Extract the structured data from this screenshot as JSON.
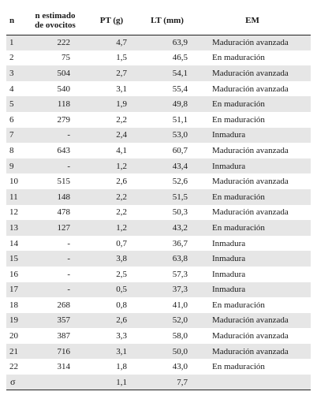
{
  "table": {
    "headers": {
      "n": "n",
      "ovocitos_line1": "n estimado",
      "ovocitos_line2": "de ovocitos",
      "pt": "PT (g)",
      "lt": "LT (mm)",
      "em": "EM"
    },
    "rows": [
      {
        "n": "1",
        "ovocitos": "222",
        "pt": "4,7",
        "lt": "63,9",
        "em": "Maduración avanzada"
      },
      {
        "n": "2",
        "ovocitos": "75",
        "pt": "1,5",
        "lt": "46,5",
        "em": "En maduración"
      },
      {
        "n": "3",
        "ovocitos": "504",
        "pt": "2,7",
        "lt": "54,1",
        "em": "Maduración avanzada"
      },
      {
        "n": "4",
        "ovocitos": "540",
        "pt": "3,1",
        "lt": "55,4",
        "em": "Maduración avanzada"
      },
      {
        "n": "5",
        "ovocitos": "118",
        "pt": "1,9",
        "lt": "49,8",
        "em": "En maduración"
      },
      {
        "n": "6",
        "ovocitos": "279",
        "pt": "2,2",
        "lt": "51,1",
        "em": "En maduración"
      },
      {
        "n": "7",
        "ovocitos": "-",
        "pt": "2,4",
        "lt": "53,0",
        "em": "Inmadura"
      },
      {
        "n": "8",
        "ovocitos": "643",
        "pt": "4,1",
        "lt": "60,7",
        "em": "Maduración avanzada"
      },
      {
        "n": "9",
        "ovocitos": "-",
        "pt": "1,2",
        "lt": "43,4",
        "em": "Inmadura"
      },
      {
        "n": "10",
        "ovocitos": "515",
        "pt": "2,6",
        "lt": "52,6",
        "em": "Maduración avanzada"
      },
      {
        "n": "11",
        "ovocitos": "148",
        "pt": "2,2",
        "lt": "51,5",
        "em": "En maduración"
      },
      {
        "n": "12",
        "ovocitos": "478",
        "pt": "2,2",
        "lt": "50,3",
        "em": "Maduración avanzada"
      },
      {
        "n": "13",
        "ovocitos": "127",
        "pt": "1,2",
        "lt": "43,2",
        "em": "En maduración"
      },
      {
        "n": "14",
        "ovocitos": "-",
        "pt": "0,7",
        "lt": "36,7",
        "em": "Inmadura"
      },
      {
        "n": "15",
        "ovocitos": "-",
        "pt": "3,8",
        "lt": "63,8",
        "em": "Inmadura"
      },
      {
        "n": "16",
        "ovocitos": "-",
        "pt": "2,5",
        "lt": "57,3",
        "em": "Inmadura"
      },
      {
        "n": "17",
        "ovocitos": "-",
        "pt": "0,5",
        "lt": "37,3",
        "em": "Inmadura"
      },
      {
        "n": "18",
        "ovocitos": "268",
        "pt": "0,8",
        "lt": "41,0",
        "em": "En maduración"
      },
      {
        "n": "19",
        "ovocitos": "357",
        "pt": "2,6",
        "lt": "52,0",
        "em": "Maduración avanzada"
      },
      {
        "n": "20",
        "ovocitos": "387",
        "pt": "3,3",
        "lt": "58,0",
        "em": "Maduración avanzada"
      },
      {
        "n": "21",
        "ovocitos": "716",
        "pt": "3,1",
        "lt": "50,0",
        "em": "Maduración avanzada"
      },
      {
        "n": "22",
        "ovocitos": "314",
        "pt": "1,8",
        "lt": "43,0",
        "em": "En maduración"
      },
      {
        "n": "σ",
        "ovocitos": "",
        "pt": "1,1",
        "lt": "7,7",
        "em": ""
      }
    ],
    "shade_color": "#e6e6e6"
  }
}
